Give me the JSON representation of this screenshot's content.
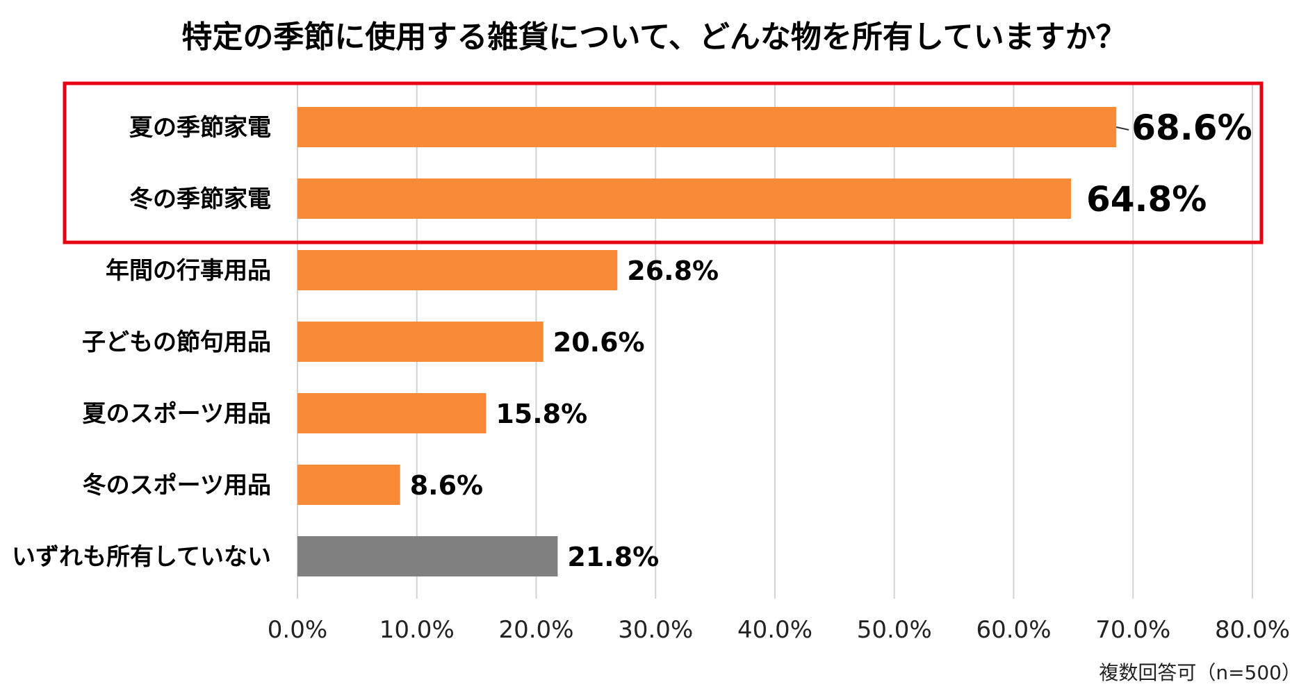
{
  "chart_data": {
    "type": "bar",
    "orientation": "horizontal",
    "title": "特定の季節に使用する雑貨について、どんな物を所有していますか？",
    "categories": [
      "夏の季節家電",
      "冬の季節家電",
      "年間の行事用品",
      "子どもの節句用品",
      "夏のスポーツ用品",
      "冬のスポーツ用品",
      "いずれも所有していない"
    ],
    "values": [
      68.6,
      64.8,
      26.8,
      20.6,
      15.8,
      8.6,
      21.8
    ],
    "value_labels": [
      "68.6%",
      "64.8%",
      "26.8%",
      "20.6%",
      "15.8%",
      "8.6%",
      "21.8%"
    ],
    "bar_colors": [
      "#F98A37",
      "#F98A37",
      "#F98A37",
      "#F98A37",
      "#F98A37",
      "#F98A37",
      "#808080"
    ],
    "highlight": {
      "categories": [
        "夏の季節家電",
        "冬の季節家電"
      ],
      "color": "#E60012"
    },
    "xlim": [
      0,
      80
    ],
    "xticks": [
      0,
      10,
      20,
      30,
      40,
      50,
      60,
      70,
      80
    ],
    "xtick_labels": [
      "0.0%",
      "10.0%",
      "20.0%",
      "30.0%",
      "40.0%",
      "50.0%",
      "60.0%",
      "70.0%",
      "80.0%"
    ],
    "grid": true,
    "note": "複数回答可（n=500）"
  }
}
